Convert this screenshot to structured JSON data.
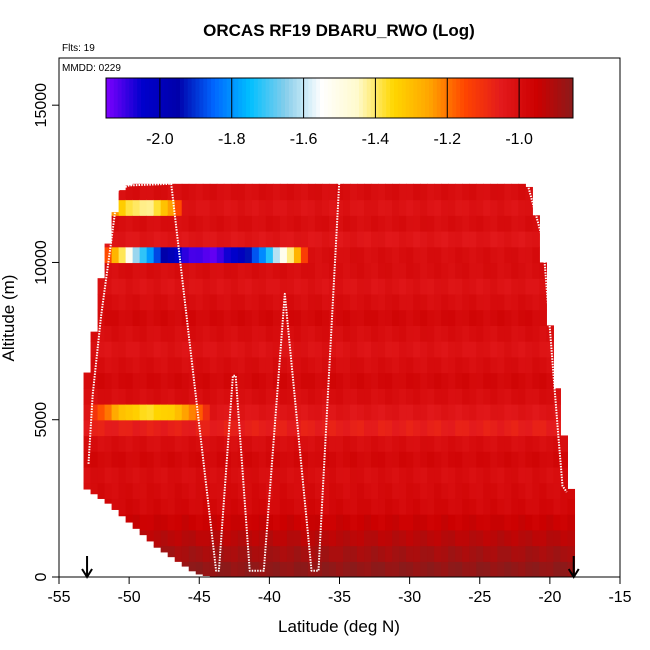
{
  "chart_data": {
    "type": "heatmap",
    "title": "ORCAS RF19 DBARU_RWO (Log)",
    "xlabel": "Latitude (deg N)",
    "ylabel": "Altitude (m)",
    "xlim": [
      -55,
      -15
    ],
    "ylim": [
      0,
      16500
    ],
    "x_ticks": [
      -55,
      -50,
      -45,
      -40,
      -35,
      -30,
      -25,
      -20,
      -15
    ],
    "x_tick_labels": [
      "-55",
      "-50",
      "-45",
      "-40",
      "-35",
      "-30",
      "-25",
      "-20",
      "-15"
    ],
    "y_ticks": [
      0,
      5000,
      10000,
      15000
    ],
    "y_tick_labels": [
      "0",
      "5000",
      "10000",
      "15000"
    ],
    "annotations": {
      "flights": "Flts: 19",
      "date": "MMDD: 0229"
    },
    "colorbar": {
      "range": [
        -2.15,
        -0.85
      ],
      "ticks": [
        -2.0,
        -1.8,
        -1.6,
        -1.4,
        -1.2,
        -1.0
      ],
      "tick_labels": [
        "-2.0",
        "-1.8",
        "-1.6",
        "-1.4",
        "-1.2",
        "-1.0"
      ],
      "stops": [
        "#7f00ff",
        "#0000cd",
        "#0000aa",
        "#0066ff",
        "#00bfff",
        "#87ceeb",
        "#ffffff",
        "#fffacd",
        "#ffd700",
        "#ffa500",
        "#ff4500",
        "#e31a1c",
        "#cc0000",
        "#8b1a1a"
      ]
    },
    "coverage": {
      "lat": [
        -53.0,
        -52.5,
        -52.0,
        -51.5,
        -51.0,
        -50.5,
        -50.0,
        -49.5,
        -49.0,
        -48.5,
        -48.0,
        -47.5,
        -47.0,
        -46.5,
        -46.0,
        -45.5,
        -45.0,
        -44.5,
        -44.0,
        -43.5,
        -43.0,
        -42.5,
        -42.0,
        -41.5,
        -41.0,
        -40.5,
        -40.0,
        -39.5,
        -39.0,
        -38.5,
        -38.0,
        -37.5,
        -37.0,
        -36.5,
        -36.0,
        -35.5,
        -35.0,
        -34.5,
        -34.0,
        -33.5,
        -33.0,
        -32.5,
        -32.0,
        -31.5,
        -31.0,
        -30.5,
        -30.0,
        -29.5,
        -29.0,
        -28.5,
        -28.0,
        -27.5,
        -27.0,
        -26.5,
        -26.0,
        -25.5,
        -25.0,
        -24.5,
        -24.0,
        -23.5,
        -23.0,
        -22.5,
        -22.0,
        -21.5,
        -21.0,
        -20.5,
        -20.0,
        -19.5,
        -19.0,
        -18.5
      ],
      "bottom_m": [
        2800,
        2650,
        2500,
        2350,
        2150,
        1950,
        1750,
        1550,
        1350,
        1150,
        950,
        800,
        650,
        500,
        350,
        200,
        100,
        50,
        0,
        0,
        0,
        0,
        0,
        0,
        0,
        0,
        0,
        0,
        0,
        0,
        0,
        0,
        0,
        0,
        0,
        0,
        0,
        0,
        0,
        0,
        0,
        0,
        0,
        0,
        0,
        0,
        0,
        0,
        0,
        0,
        0,
        0,
        0,
        0,
        0,
        0,
        0,
        0,
        0,
        0,
        0,
        0,
        0,
        0,
        0,
        0,
        0,
        0,
        0,
        0
      ],
      "top_m": [
        6500,
        7800,
        9500,
        10600,
        11600,
        12300,
        12450,
        12500,
        12500,
        12500,
        12500,
        12500,
        12500,
        12500,
        12500,
        12500,
        12500,
        12500,
        12500,
        12500,
        12500,
        12500,
        12500,
        12500,
        12600,
        12600,
        12600,
        12600,
        12600,
        12600,
        12600,
        12600,
        12600,
        12600,
        12600,
        12600,
        12700,
        12700,
        12700,
        12700,
        12700,
        12800,
        12800,
        12900,
        12900,
        12900,
        12900,
        12900,
        12900,
        12900,
        12900,
        12900,
        12900,
        12900,
        12900,
        12900,
        12900,
        12900,
        12900,
        12900,
        12900,
        12900,
        12700,
        12400,
        11500,
        10000,
        8000,
        6000,
        4500,
        2800
      ]
    },
    "layers": {
      "alt_m": [
        250,
        750,
        1250,
        1750,
        2250,
        2750,
        3250,
        3750,
        4250,
        4750,
        5250,
        5750,
        6250,
        6750,
        7250,
        7750,
        8250,
        8750,
        9250,
        9750,
        10250,
        10750,
        11250,
        11750,
        12250
      ],
      "value": [
        -0.86,
        -0.89,
        -0.92,
        -0.95,
        -0.98,
        -0.99,
        -1.0,
        -0.98,
        -1.0,
        -1.06,
        -1.03,
        -1.0,
        -0.98,
        -1.0,
        -1.02,
        -1.0,
        -0.98,
        -1.0,
        -1.02,
        -1.0,
        -1.0,
        -1.03,
        -1.0,
        -1.02,
        -1.0
      ]
    },
    "features": [
      {
        "lat_range": [
          -52.0,
          -37.0
        ],
        "alt_range": [
          9800,
          10600
        ],
        "min_value": -2.12
      },
      {
        "lat_range": [
          -53.0,
          -44.0
        ],
        "alt_range": [
          4800,
          5600
        ],
        "min_value": -1.36
      },
      {
        "lat_range": [
          -52.0,
          -46.0
        ],
        "alt_range": [
          11600,
          12000
        ],
        "min_value": -1.42
      },
      {
        "lat_range": [
          -53.0,
          -43.0
        ],
        "alt_range": [
          4300,
          4600
        ],
        "min_value": -1.18
      }
    ],
    "flight_track": {
      "lat": [
        -52.9,
        -52.6,
        -52.0,
        -51.3,
        -50.8,
        -50.0,
        -47.0,
        -43.8,
        -43.6,
        -42.6,
        -42.4,
        -41.4,
        -40.9,
        -40.4,
        -38.9,
        -37.0,
        -36.5,
        -35.0,
        -34.3,
        -29.5,
        -21.9,
        -20.5,
        -19.4,
        -19.1,
        -18.8
      ],
      "alt_m": [
        3600,
        5800,
        8300,
        10600,
        12300,
        12450,
        12500,
        200,
        200,
        6400,
        6400,
        200,
        200,
        200,
        9000,
        200,
        200,
        12700,
        12900,
        12900,
        13000,
        10700,
        4500,
        2900,
        2700
      ]
    },
    "markers": [
      {
        "type": "arrow-down",
        "lat": -53.0
      },
      {
        "type": "arrow-down",
        "lat": -18.3
      }
    ]
  }
}
